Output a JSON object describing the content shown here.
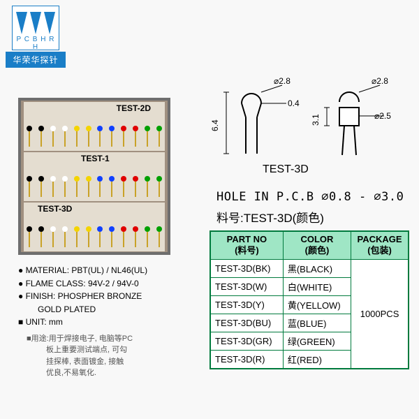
{
  "logo": {
    "small": "P C B H R H",
    "label": "华荣华探针"
  },
  "photo": {
    "row1": "TEST-2D",
    "row2": "TEST-1",
    "row3": "TEST-3D",
    "pin_colors": [
      "#000000",
      "#000000",
      "#ffffff",
      "#ffffff",
      "#f4d400",
      "#f4d400",
      "#1040ff",
      "#1040ff",
      "#e00000",
      "#e00000",
      "#00a000",
      "#00a000"
    ]
  },
  "bullets": {
    "b1": "● MATERIAL: PBT(UL) / NL46(UL)",
    "b2": "● FLAME CLASS: 94V-2 / 94V-0",
    "b3": "● FINISH: PHOSPHER BRONZE",
    "b3s": "GOLD PLATED",
    "b4": "■ UNIT: mm",
    "use1": "■用途:用于焊接电子, 电脑等PC",
    "use2": "板上重要测试端点, 可勾",
    "use3": "挂探棒, 表面镀金, 接触",
    "use4": "优良,不易氧化."
  },
  "diagram": {
    "d1": "⌀2.8",
    "d2": "0.4",
    "d3": "6.4",
    "d4": "⌀2.8",
    "d5": "⌀2.5",
    "d6": "3.1",
    "caption": "TEST-3D"
  },
  "hole": "HOLE IN P.C.B ⌀0.8 - ⌀3.0",
  "pn": "料号:TEST-3D(颜色)",
  "table": {
    "h1a": "PART NO",
    "h1b": "(料号)",
    "h2a": "COLOR",
    "h2b": "(颜色)",
    "h3a": "PACKAGE",
    "h3b": "(包装)",
    "rows": [
      {
        "p": "TEST-3D(BK)",
        "c": "黑(BLACK)"
      },
      {
        "p": "TEST-3D(W)",
        "c": "白(WHITE)"
      },
      {
        "p": "TEST-3D(Y)",
        "c": "黄(YELLOW)"
      },
      {
        "p": "TEST-3D(BU)",
        "c": "蓝(BLUE)"
      },
      {
        "p": "TEST-3D(GR)",
        "c": "绿(GREEN)"
      },
      {
        "p": "TEST-3D(R)",
        "c": "红(RED)"
      }
    ],
    "pkg": "1000PCS"
  }
}
